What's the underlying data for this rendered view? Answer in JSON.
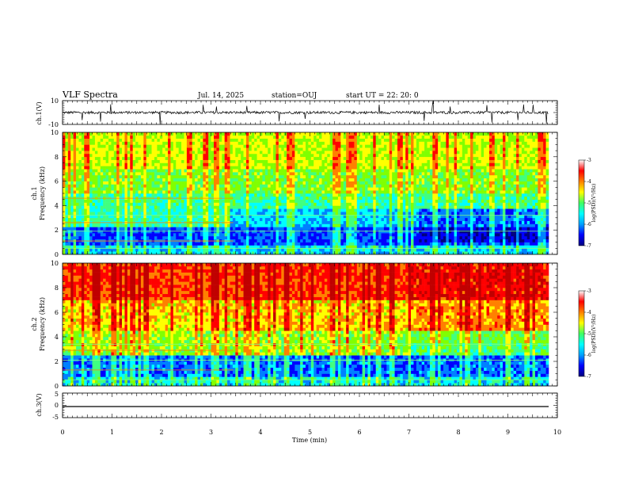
{
  "header": {
    "title": "VLF Spectra",
    "date": "Jul. 14, 2025",
    "station": "station=OUJ",
    "start_ut": "start UT =  22: 20: 0"
  },
  "chart_data": [
    {
      "type": "line",
      "panel": "waveform-ch1",
      "ylabel": "ch.1(V)",
      "ylim": [
        -10,
        10
      ],
      "yticks": [
        10,
        -10
      ],
      "xlim": [
        0,
        10
      ],
      "baseline": 0,
      "series": [
        {
          "values_description": "noisy trace around 0 with spikes to ±10"
        }
      ]
    },
    {
      "type": "heatmap",
      "panel": "spectrogram-ch1",
      "ylabel_line1": "ch.1",
      "ylabel_line2": "Frequency (kHz)",
      "ylim": [
        0,
        10
      ],
      "yticks": [
        "0",
        "2",
        "4",
        "6",
        "8",
        "10"
      ],
      "xlim": [
        0,
        10
      ],
      "colorbar": {
        "label": "log(PSD)(V²/Hz)",
        "range": [
          -7,
          -3
        ],
        "ticks": [
          "-3",
          "-4",
          "-5",
          "-6",
          "-7"
        ]
      }
    },
    {
      "type": "heatmap",
      "panel": "spectrogram-ch2",
      "ylabel_line1": "ch.2",
      "ylabel_line2": "Frequency (kHz)",
      "ylim": [
        0,
        10
      ],
      "yticks": [
        "0",
        "2",
        "4",
        "6",
        "8",
        "10"
      ],
      "xlim": [
        0,
        10
      ],
      "colorbar": {
        "label": "log(PSD)(V²/Hz)",
        "range": [
          -7,
          -3
        ],
        "ticks": [
          "-3",
          "-4",
          "-5",
          "-6",
          "-7"
        ]
      }
    },
    {
      "type": "line",
      "panel": "waveform-ch3",
      "ylabel": "ch.3(V)",
      "ylim": [
        -5,
        5
      ],
      "yticks": [
        "5",
        "0",
        "-5"
      ],
      "xlim": [
        0,
        10
      ],
      "xlabel": "Time (min)",
      "xticks": [
        "0",
        "1",
        "2",
        "3",
        "4",
        "5",
        "6",
        "7",
        "8",
        "9",
        "10"
      ],
      "series": [
        {
          "constant": -1
        }
      ]
    }
  ],
  "colors": {
    "spectrum": [
      "#00007f",
      "#0000ff",
      "#0080ff",
      "#00ffff",
      "#40ff80",
      "#80ff00",
      "#ffff00",
      "#ff8000",
      "#ff0000",
      "#c00000"
    ]
  }
}
